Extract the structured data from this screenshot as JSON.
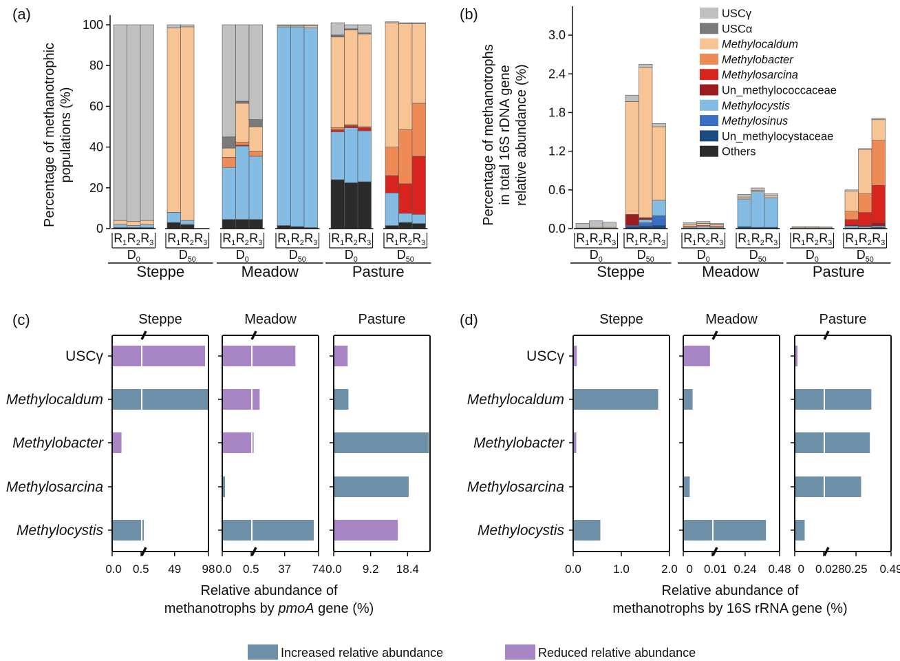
{
  "colors": {
    "USCg": "#c0c0c0",
    "USCa": "#7a7a7a",
    "Methylocaldum": "#f7c496",
    "Methylobacter": "#ee8a56",
    "Methylosarcina": "#d8241f",
    "Un_methylococcaceae": "#9a1b20",
    "Methylocystis": "#85bce3",
    "Methylosinus": "#3b6fc4",
    "Un_methylocystaceae": "#1b4a80",
    "Others": "#2b2b2b",
    "increased": "#6e8fa8",
    "reduced": "#a784c4"
  },
  "panels": {
    "a_label": "(a)",
    "b_label": "(b)",
    "c_label": "(c)",
    "d_label": "(d)"
  },
  "legend_top": [
    {
      "key": "USCg",
      "label": "USCγ",
      "italic": false
    },
    {
      "key": "USCa",
      "label": "USCα",
      "italic": false
    },
    {
      "key": "Methylocaldum",
      "label": "Methylocaldum",
      "italic": true
    },
    {
      "key": "Methylobacter",
      "label": "Methylobacter",
      "italic": true
    },
    {
      "key": "Methylosarcina",
      "label": "Methylosarcina",
      "italic": true
    },
    {
      "key": "Un_methylococcaceae",
      "label": "Un_methylococcaceae",
      "italic": false
    },
    {
      "key": "Methylocystis",
      "label": "Methylocystis",
      "italic": true
    },
    {
      "key": "Methylosinus",
      "label": "Methylosinus",
      "italic": true
    },
    {
      "key": "Un_methylocystaceae",
      "label": "Un_methylocystaceae",
      "italic": false
    },
    {
      "key": "Others",
      "label": "Others",
      "italic": false
    }
  ],
  "legend_bottom": {
    "increased": "Increased relative abundance",
    "reduced": "Reduced relative abundance"
  },
  "chart_data": [
    {
      "panel": "a",
      "type": "bar",
      "stacked": true,
      "ylabel": [
        "Percentage of methanotrophic",
        "populations (%)"
      ],
      "ylim": [
        0,
        100
      ],
      "yticks": [
        0,
        20,
        40,
        60,
        80,
        100
      ],
      "sites": [
        "Steppe",
        "Meadow",
        "Pasture"
      ],
      "treatments": [
        "D0",
        "D50"
      ],
      "replicates": [
        "R1",
        "R2",
        "R3"
      ],
      "stack_order": [
        "Others",
        "Un_methylocystaceae",
        "Methylosinus",
        "Methylocystis",
        "Un_methylococcaceae",
        "Methylosarcina",
        "Methylobacter",
        "Methylocaldum",
        "USCa",
        "USCg"
      ],
      "groups": [
        {
          "site": "Steppe",
          "treatment": "D0",
          "bars": [
            {
              "Others": 0.5,
              "Methylocystis": 1.5,
              "Methylocaldum": 2,
              "USCg": 96
            },
            {
              "Others": 0.5,
              "Methylocystis": 1,
              "Methylocaldum": 2,
              "USCg": 96.5
            },
            {
              "Others": 0.5,
              "Methylocystis": 1.5,
              "Methylocaldum": 2,
              "USCg": 96
            }
          ]
        },
        {
          "site": "Steppe",
          "treatment": "D50",
          "bars": [
            {
              "Others": 3,
              "Methylocystis": 5,
              "Methylocaldum": 90.5,
              "USCg": 1.5
            },
            {
              "Others": 2,
              "Methylocystis": 2,
              "Methylocaldum": 95,
              "USCg": 1
            },
            {}
          ]
        },
        {
          "site": "Meadow",
          "treatment": "D0",
          "bars": [
            {
              "Others": 4.5,
              "Methylocystis": 25.5,
              "Methylobacter": 5,
              "Methylocaldum": 4.5,
              "USCa": 5.5,
              "USCg": 55
            },
            {
              "Others": 4.5,
              "Methylocystis": 36,
              "Methylosarcina": 0.5,
              "Methylobacter": 1.5,
              "Methylocaldum": 19,
              "USCa": 1,
              "USCg": 37.5
            },
            {
              "Others": 4.5,
              "Methylocystis": 31,
              "Methylobacter": 2.5,
              "Methylocaldum": 12,
              "USCa": 3.5,
              "USCg": 46.5
            }
          ]
        },
        {
          "site": "Meadow",
          "treatment": "D50",
          "bars": [
            {
              "Others": 1.5,
              "Methylocystis": 97.5,
              "Methylocaldum": 0.5,
              "USCg": 0.5
            },
            {
              "Others": 1,
              "Methylocystis": 98,
              "Methylocaldum": 0.5,
              "USCg": 0.5
            },
            {
              "Others": 0.5,
              "Methylocystis": 98,
              "Methylocaldum": 1,
              "USCg": 0.5
            }
          ]
        },
        {
          "site": "Pasture",
          "treatment": "D0",
          "bars": [
            {
              "Others": 24,
              "Methylocystis": 23.5,
              "Methylosarcina": 1,
              "Methylobacter": 1,
              "Methylocaldum": 44.5,
              "USCa": 1,
              "USCg": 6
            },
            {
              "Others": 22.5,
              "Methylocystis": 27,
              "Methylosarcina": 1,
              "Methylobacter": 0.5,
              "Methylocaldum": 46.5,
              "USCa": 0.5,
              "USCg": 2
            },
            {
              "Others": 23,
              "Methylocystis": 25,
              "Methylosarcina": 1.5,
              "Methylobacter": 0.5,
              "Methylocaldum": 45.5,
              "USCa": 0.5,
              "USCg": 4
            }
          ]
        },
        {
          "site": "Pasture",
          "treatment": "D50",
          "bars": [
            {
              "Others": 1.5,
              "Methylocystis": 16,
              "Methylosarcina": 8.5,
              "Methylobacter": 14,
              "Methylocaldum": 61,
              "USCg": 0.5
            },
            {
              "Others": 3,
              "Methylocystis": 4.5,
              "Methylosarcina": 14.5,
              "Methylobacter": 26.5,
              "Methylocaldum": 52,
              "USCg": 0.5
            },
            {
              "Others": 2.5,
              "Methylocystis": 4.5,
              "Methylosarcina": 28.5,
              "Methylobacter": 26,
              "Methylocaldum": 39,
              "USCg": 0.5
            }
          ]
        }
      ]
    },
    {
      "panel": "b",
      "type": "bar",
      "stacked": true,
      "ylabel": [
        "Percentage of methanotrophs",
        "in total 16S rDNA gene",
        "relative abundance (%)"
      ],
      "ylim": [
        0,
        3.3
      ],
      "yticks": [
        "0.0",
        "0.6",
        "1.2",
        "1.8",
        "2.4",
        "3.0"
      ],
      "sites": [
        "Steppe",
        "Meadow",
        "Pasture"
      ],
      "treatments": [
        "D0",
        "D50"
      ],
      "replicates": [
        "R1",
        "R2",
        "R3"
      ],
      "stack_order": [
        "Others",
        "Un_methylocystaceae",
        "Methylosinus",
        "Methylocystis",
        "Un_methylococcaceae",
        "Methylosarcina",
        "Methylobacter",
        "Methylocaldum",
        "USCa",
        "USCg"
      ],
      "groups": [
        {
          "site": "Steppe",
          "treatment": "D0",
          "bars": [
            {
              "Methylocaldum": 0.01,
              "USCg": 0.07
            },
            {
              "Methylocaldum": 0.02,
              "USCg": 0.1
            },
            {
              "Methylocaldum": 0.02,
              "USCg": 0.08
            }
          ]
        },
        {
          "site": "Steppe",
          "treatment": "D50",
          "bars": [
            {
              "Un_methylocystaceae": 0.03,
              "Methylosinus": 0.02,
              "Un_methylococcaceae": 0.17,
              "Methylocaldum": 1.75,
              "USCg": 0.1
            },
            {
              "Un_methylocystaceae": 0.04,
              "Methylosinus": 0.05,
              "Methylocystis": 0.05,
              "Un_methylococcaceae": 0.03,
              "Methylocaldum": 2.33,
              "USCg": 0.05
            },
            {
              "Un_methylocystaceae": 0.05,
              "Methylosinus": 0.15,
              "Methylocystis": 0.24,
              "Methylocaldum": 1.14,
              "USCg": 0.05
            }
          ]
        },
        {
          "site": "Meadow",
          "treatment": "D0",
          "bars": [
            {
              "Methylocystis": 0.02,
              "Methylobacter": 0.02,
              "Methylocaldum": 0.03,
              "USCg": 0.02
            },
            {
              "Methylocystis": 0.03,
              "Methylobacter": 0.02,
              "Methylocaldum": 0.03,
              "USCg": 0.03
            },
            {
              "Methylocystis": 0.02,
              "Methylobacter": 0.02,
              "Methylocaldum": 0.02,
              "USCg": 0.02
            }
          ]
        },
        {
          "site": "Meadow",
          "treatment": "D50",
          "bars": [
            {
              "Un_methylocystaceae": 0.03,
              "Methylocystis": 0.43,
              "Methylocaldum": 0.03,
              "USCg": 0.04
            },
            {
              "Un_methylocystaceae": 0.02,
              "Methylocystis": 0.55,
              "Methylocaldum": 0.02,
              "USCg": 0.04
            },
            {
              "Un_methylocystaceae": 0.02,
              "Methylocystis": 0.46,
              "Methylocaldum": 0.03,
              "USCg": 0.03
            }
          ]
        },
        {
          "site": "Pasture",
          "treatment": "D0",
          "bars": [
            {
              "Methylocaldum": 0.02,
              "USCg": 0.01
            },
            {
              "Methylocaldum": 0.02,
              "USCg": 0.01
            },
            {
              "Methylocaldum": 0.02,
              "USCg": 0.005
            }
          ]
        },
        {
          "site": "Pasture",
          "treatment": "D50",
          "bars": [
            {
              "Un_methylocystaceae": 0.01,
              "Methylocystis": 0.03,
              "Methylosarcina": 0.08,
              "Methylobacter": 0.13,
              "Un_methylococcaceae": 0.02,
              "Methylocaldum": 0.31,
              "USCg": 0.02
            },
            {
              "Un_methylocystaceae": 0.01,
              "Methylocystis": 0.02,
              "Methylosarcina": 0.2,
              "Methylobacter": 0.29,
              "Un_methylococcaceae": 0.02,
              "Methylocaldum": 0.69,
              "USCg": 0.01
            },
            {
              "Un_methylocystaceae": 0.02,
              "Methylocystis": 0.02,
              "Methylosarcina": 0.58,
              "Methylobacter": 0.7,
              "Un_methylococcaceae": 0.05,
              "Methylocaldum": 0.32,
              "USCg": 0.02
            }
          ]
        }
      ]
    },
    {
      "panel": "c",
      "type": "bar",
      "orientation": "horizontal",
      "xlabel": [
        "Relative abundance of",
        "methanotrophs by ",
        "pmoA",
        " gene (%)"
      ],
      "categories": [
        {
          "label": "USCγ",
          "italic": false
        },
        {
          "label": "Methylocaldum",
          "italic": true
        },
        {
          "label": "Methylobacter",
          "italic": true
        },
        {
          "label": "Methylosarcina",
          "italic": true
        },
        {
          "label": "Methylocystis",
          "italic": true
        }
      ],
      "facets": [
        {
          "title": "Steppe",
          "break": true,
          "break_at": 0.5,
          "range": [
            0,
            98
          ],
          "tick_labels": [
            "0.0",
            "0.5",
            "49",
            "98"
          ],
          "bars": [
            {
              "value": 92,
              "direction": "reduced"
            },
            {
              "value": 98,
              "direction": "increased"
            },
            {
              "value": 0.15,
              "direction": "reduced"
            },
            {
              "value": 0,
              "direction": "none"
            },
            {
              "value": 3.5,
              "direction": "increased"
            }
          ]
        },
        {
          "title": "Meadow",
          "break": true,
          "break_at": 0.5,
          "range": [
            0,
            74
          ],
          "tick_labels": [
            "0.0",
            "0.5",
            "37",
            "74"
          ],
          "bars": [
            {
              "value": 48,
              "direction": "reduced"
            },
            {
              "value": 9,
              "direction": "reduced"
            },
            {
              "value": 2.5,
              "direction": "reduced"
            },
            {
              "value": 0.03,
              "direction": "increased"
            },
            {
              "value": 68,
              "direction": "increased"
            }
          ]
        },
        {
          "title": "Pasture",
          "break": false,
          "range": [
            0,
            24
          ],
          "tick_labels": [
            "0.0",
            "9.2",
            "18.4"
          ],
          "bars": [
            {
              "value": 3.3,
              "direction": "reduced"
            },
            {
              "value": 3.5,
              "direction": "increased"
            },
            {
              "value": 23.5,
              "direction": "increased"
            },
            {
              "value": 18.5,
              "direction": "increased"
            },
            {
              "value": 15.8,
              "direction": "reduced"
            }
          ]
        }
      ]
    },
    {
      "panel": "d",
      "type": "bar",
      "orientation": "horizontal",
      "xlabel": [
        "Relative abundance of",
        "methanotrophs by 16S rRNA gene (%)"
      ],
      "categories": [
        {
          "label": "USCγ",
          "italic": false
        },
        {
          "label": "Methylocaldum",
          "italic": true
        },
        {
          "label": "Methylobacter",
          "italic": true
        },
        {
          "label": "Methylosarcina",
          "italic": true
        },
        {
          "label": "Methylocystis",
          "italic": true
        }
      ],
      "facets": [
        {
          "title": "Steppe",
          "break": false,
          "range": [
            0,
            2.0
          ],
          "tick_labels": [
            "0.0",
            "1.0",
            "2.0"
          ],
          "bars": [
            {
              "value": 0.06,
              "direction": "reduced"
            },
            {
              "value": 1.75,
              "direction": "increased"
            },
            {
              "value": 0.05,
              "direction": "reduced"
            },
            {
              "value": 0,
              "direction": "none"
            },
            {
              "value": 0.55,
              "direction": "increased"
            }
          ]
        },
        {
          "title": "Meadow",
          "break": true,
          "break_at": 0.01,
          "range": [
            0,
            0.48
          ],
          "tick_labels": [
            "0",
            "0.01",
            "0.24",
            "0.48"
          ],
          "bars": [
            {
              "value": 0.009,
              "direction": "reduced"
            },
            {
              "value": 0.003,
              "direction": "increased"
            },
            {
              "value": 0,
              "direction": "none"
            },
            {
              "value": 0.002,
              "direction": "increased"
            },
            {
              "value": 0.38,
              "direction": "increased"
            }
          ]
        },
        {
          "title": "Pasture",
          "break": true,
          "break_at": 0.028,
          "range": [
            0,
            0.49
          ],
          "tick_labels": [
            "0",
            "0.028",
            "0.25",
            "0.49"
          ],
          "bars": [
            {
              "value": 0.001,
              "direction": "reduced"
            },
            {
              "value": 0.35,
              "direction": "increased"
            },
            {
              "value": 0.34,
              "direction": "increased"
            },
            {
              "value": 0.28,
              "direction": "increased"
            },
            {
              "value": 0.009,
              "direction": "increased"
            }
          ]
        }
      ]
    }
  ]
}
